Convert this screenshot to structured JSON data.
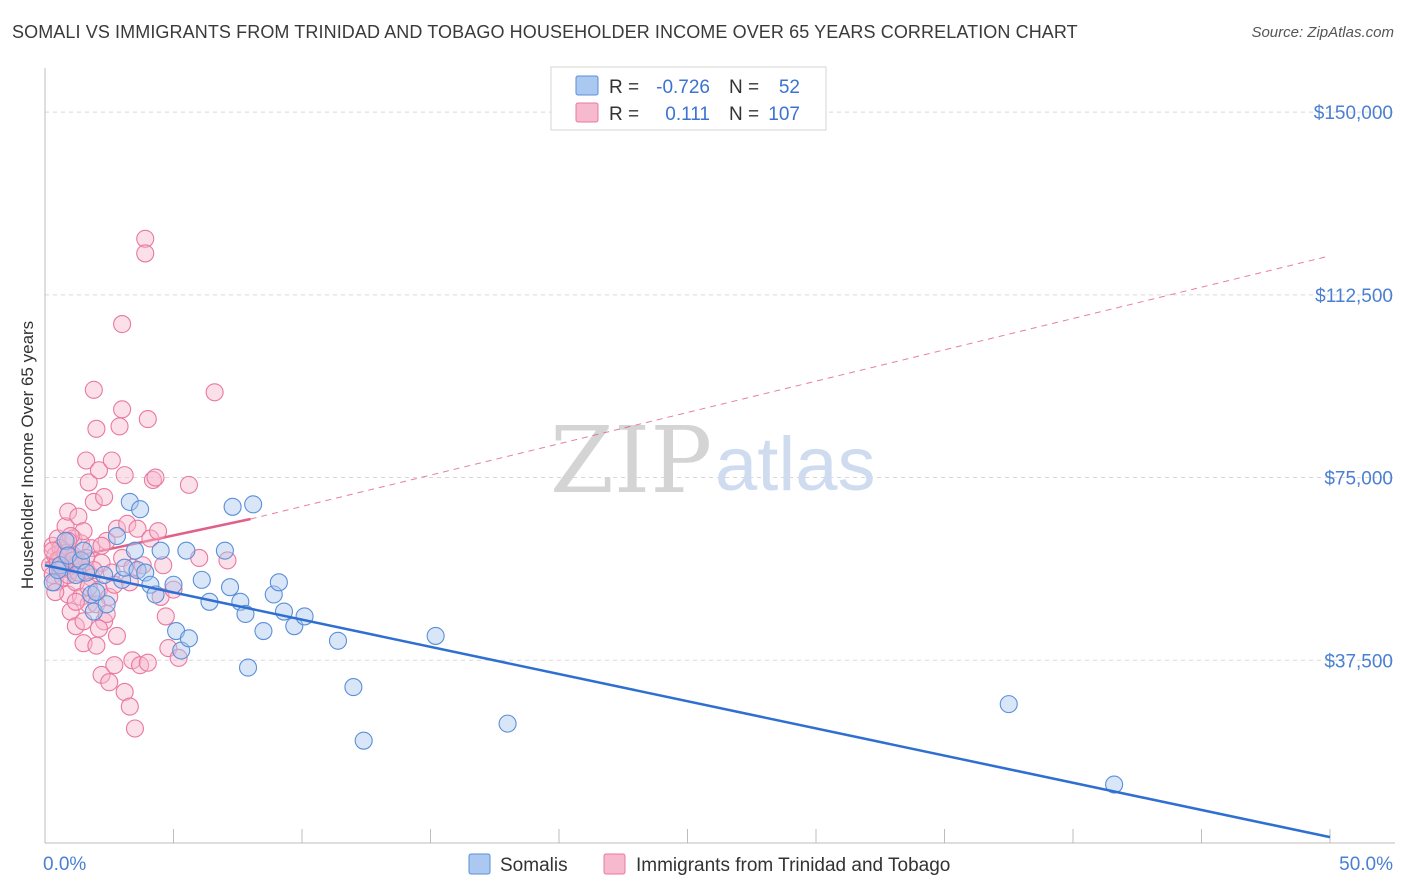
{
  "title": "SOMALI VS IMMIGRANTS FROM TRINIDAD AND TOBAGO HOUSEHOLDER INCOME OVER 65 YEARS CORRELATION CHART",
  "source": "Source: ZipAtlas.com",
  "watermark": {
    "zip": "ZIP",
    "atlas": "atlas"
  },
  "legend": {
    "rows": [
      {
        "r_label": "R =",
        "r_value": "-0.726",
        "n_label": "N =",
        "n_value": "52"
      },
      {
        "r_label": "R =",
        "r_value": "0.111",
        "n_label": "N =",
        "n_value": "107"
      }
    ]
  },
  "colors": {
    "somali_fill": "#aac8f0",
    "somali_stroke": "#5b8fd8",
    "somali_line": "#2f6fd1",
    "tt_fill": "#f6b9ce",
    "tt_stroke": "#e9799f",
    "tt_line": "#e0608a",
    "grid": "#d8d8d8",
    "tick_text": "#4a7fd1"
  },
  "chart_data": {
    "type": "scatter",
    "title": "SOMALI VS IMMIGRANTS FROM TRINIDAD AND TOBAGO HOUSEHOLDER INCOME OVER 65 YEARS CORRELATION CHART",
    "xlabel": "",
    "ylabel": "Householder Income Over 65 years",
    "xlim": [
      0,
      50
    ],
    "ylim": [
      0,
      157000
    ],
    "x_tick_labels": [
      "0.0%",
      "50.0%"
    ],
    "y_ticks": [
      {
        "value": 37500,
        "label": "$37,500"
      },
      {
        "value": 75000,
        "label": "$75,000"
      },
      {
        "value": 112500,
        "label": "$112,500"
      },
      {
        "value": 150000,
        "label": "$150,000"
      }
    ],
    "series": [
      {
        "name": "Somalis",
        "trend": {
          "x": [
            0,
            50
          ],
          "y": [
            57000,
            1200
          ],
          "style": "solid"
        },
        "points": [
          [
            0.3,
            53500
          ],
          [
            0.6,
            57000
          ],
          [
            0.8,
            62000
          ],
          [
            0.9,
            59000
          ],
          [
            1.2,
            55000
          ],
          [
            1.4,
            58000
          ],
          [
            1.6,
            55500
          ],
          [
            1.8,
            51000
          ],
          [
            1.9,
            47500
          ],
          [
            2.3,
            55000
          ],
          [
            2.4,
            49000
          ],
          [
            2.8,
            63000
          ],
          [
            3.0,
            54000
          ],
          [
            3.1,
            56500
          ],
          [
            3.3,
            70000
          ],
          [
            3.5,
            60000
          ],
          [
            3.6,
            56000
          ],
          [
            3.7,
            68500
          ],
          [
            3.9,
            55500
          ],
          [
            4.1,
            53000
          ],
          [
            4.3,
            51000
          ],
          [
            4.5,
            60000
          ],
          [
            5.0,
            53000
          ],
          [
            5.1,
            43500
          ],
          [
            5.3,
            39500
          ],
          [
            5.5,
            60000
          ],
          [
            5.6,
            42000
          ],
          [
            6.1,
            54000
          ],
          [
            6.4,
            49500
          ],
          [
            7.0,
            60000
          ],
          [
            7.2,
            52500
          ],
          [
            7.3,
            69000
          ],
          [
            7.6,
            49500
          ],
          [
            7.8,
            47000
          ],
          [
            7.9,
            36000
          ],
          [
            8.1,
            69500
          ],
          [
            8.5,
            43500
          ],
          [
            8.9,
            51000
          ],
          [
            9.1,
            53500
          ],
          [
            9.3,
            47500
          ],
          [
            9.7,
            44500
          ],
          [
            10.1,
            46500
          ],
          [
            11.4,
            41500
          ],
          [
            12.0,
            32000
          ],
          [
            12.4,
            21000
          ],
          [
            15.2,
            42500
          ],
          [
            18.0,
            24500
          ],
          [
            37.5,
            28500
          ],
          [
            41.6,
            12000
          ],
          [
            2.0,
            51500
          ],
          [
            1.5,
            60000
          ],
          [
            0.5,
            56000
          ]
        ]
      },
      {
        "name": "Immigrants from Trinidad and Tobago",
        "trend": {
          "x": [
            0,
            8
          ],
          "y": [
            57500,
            66500
          ],
          "style": "solid"
        },
        "trend_ext": {
          "x": [
            8,
            50
          ],
          "y": [
            66500,
            120500
          ],
          "style": "dashed"
        },
        "points": [
          [
            0.2,
            57000
          ],
          [
            0.3,
            55000
          ],
          [
            0.3,
            61000
          ],
          [
            0.4,
            59000
          ],
          [
            0.4,
            53500
          ],
          [
            0.5,
            57500
          ],
          [
            0.5,
            62500
          ],
          [
            0.6,
            56000
          ],
          [
            0.6,
            58500
          ],
          [
            0.7,
            60000
          ],
          [
            0.7,
            54500
          ],
          [
            0.8,
            57000
          ],
          [
            0.8,
            65000
          ],
          [
            0.9,
            51000
          ],
          [
            0.9,
            68000
          ],
          [
            1.0,
            56000
          ],
          [
            1.0,
            47500
          ],
          [
            1.1,
            62500
          ],
          [
            1.1,
            59000
          ],
          [
            1.2,
            44500
          ],
          [
            1.2,
            53500
          ],
          [
            1.3,
            67000
          ],
          [
            1.3,
            57500
          ],
          [
            1.4,
            50500
          ],
          [
            1.4,
            61500
          ],
          [
            1.5,
            45500
          ],
          [
            1.5,
            64000
          ],
          [
            1.5,
            41000
          ],
          [
            1.6,
            78500
          ],
          [
            1.6,
            56000
          ],
          [
            1.7,
            74000
          ],
          [
            1.7,
            49000
          ],
          [
            1.8,
            60500
          ],
          [
            1.8,
            54500
          ],
          [
            1.9,
            70000
          ],
          [
            1.9,
            93000
          ],
          [
            2.0,
            85000
          ],
          [
            2.0,
            40500
          ],
          [
            2.1,
            76500
          ],
          [
            2.1,
            52000
          ],
          [
            2.2,
            57500
          ],
          [
            2.2,
            34500
          ],
          [
            2.3,
            71000
          ],
          [
            2.3,
            45500
          ],
          [
            2.4,
            62000
          ],
          [
            2.5,
            50500
          ],
          [
            2.5,
            33000
          ],
          [
            2.6,
            78500
          ],
          [
            2.6,
            55500
          ],
          [
            2.7,
            36500
          ],
          [
            2.8,
            64500
          ],
          [
            2.8,
            42500
          ],
          [
            2.9,
            85500
          ],
          [
            3.0,
            58500
          ],
          [
            3.0,
            106500
          ],
          [
            3.0,
            89000
          ],
          [
            3.1,
            75500
          ],
          [
            3.1,
            31000
          ],
          [
            3.2,
            65500
          ],
          [
            3.3,
            53500
          ],
          [
            3.3,
            28000
          ],
          [
            3.4,
            37500
          ],
          [
            3.4,
            56500
          ],
          [
            3.5,
            23500
          ],
          [
            3.6,
            64500
          ],
          [
            3.7,
            36500
          ],
          [
            3.8,
            57000
          ],
          [
            3.9,
            124000
          ],
          [
            3.9,
            121000
          ],
          [
            4.0,
            87000
          ],
          [
            4.0,
            37000
          ],
          [
            4.1,
            62500
          ],
          [
            4.2,
            74500
          ],
          [
            4.3,
            75000
          ],
          [
            4.4,
            64000
          ],
          [
            4.5,
            50500
          ],
          [
            4.6,
            57000
          ],
          [
            4.7,
            46500
          ],
          [
            4.8,
            40000
          ],
          [
            5.0,
            52000
          ],
          [
            5.2,
            38000
          ],
          [
            5.6,
            73500
          ],
          [
            6.0,
            58500
          ],
          [
            6.6,
            92500
          ],
          [
            7.1,
            58000
          ],
          [
            0.4,
            51500
          ],
          [
            0.6,
            60500
          ],
          [
            0.9,
            55000
          ],
          [
            1.0,
            63000
          ],
          [
            1.2,
            57000
          ],
          [
            1.3,
            55500
          ],
          [
            1.6,
            58500
          ],
          [
            1.7,
            52500
          ],
          [
            2.0,
            49000
          ],
          [
            2.2,
            61000
          ],
          [
            2.4,
            47000
          ],
          [
            2.7,
            53000
          ],
          [
            0.5,
            58000
          ],
          [
            0.7,
            56500
          ],
          [
            0.8,
            59500
          ],
          [
            1.1,
            58000
          ],
          [
            1.4,
            57000
          ],
          [
            1.9,
            56000
          ],
          [
            2.1,
            44000
          ],
          [
            0.3,
            60000
          ],
          [
            0.9,
            62000
          ],
          [
            1.2,
            49500
          ]
        ]
      }
    ]
  },
  "bottom_legend": [
    "Somalis",
    "Immigrants from Trinidad and Tobago"
  ]
}
